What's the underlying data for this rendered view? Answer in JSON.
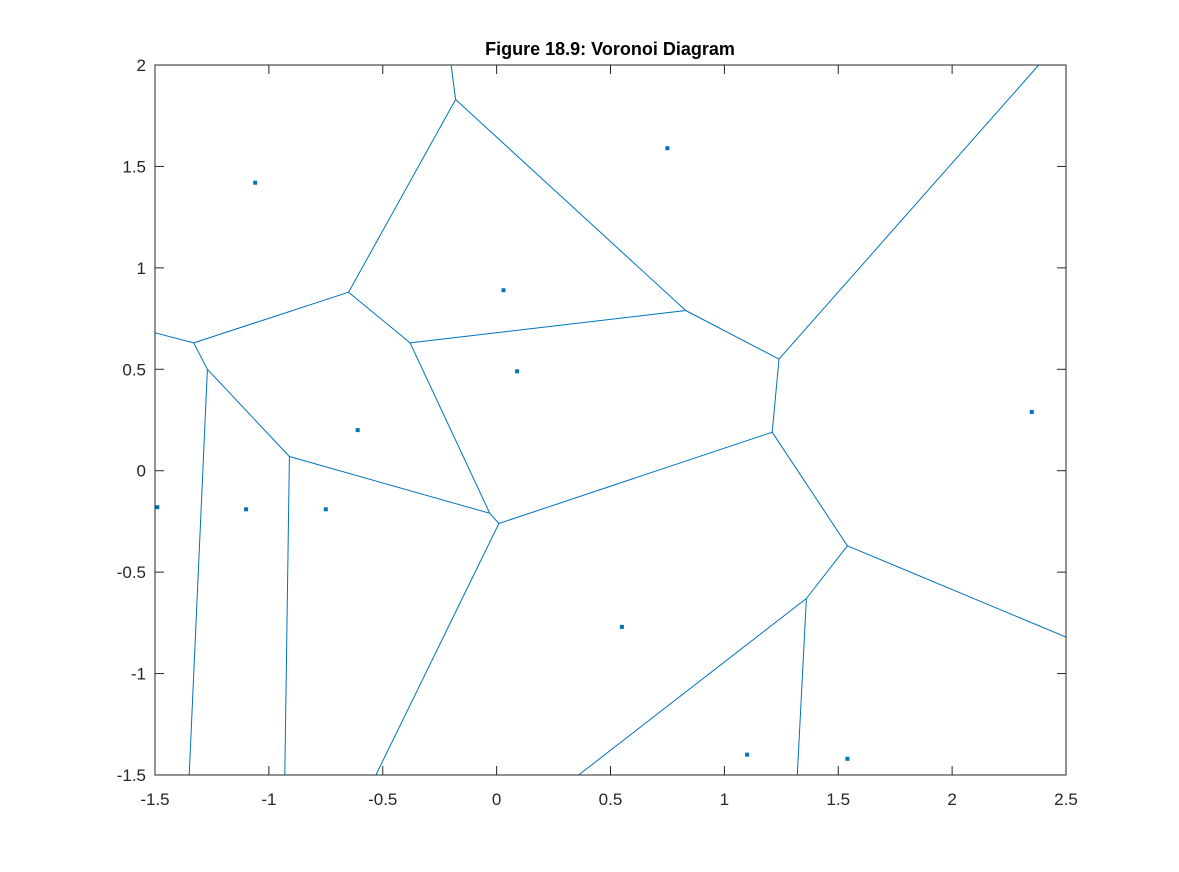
{
  "chart_data": {
    "type": "scatter",
    "title": "Figure 18.9: Voronoi Diagram",
    "xlabel": "",
    "ylabel": "",
    "xlim": [
      -1.5,
      2.5
    ],
    "ylim": [
      -1.5,
      2
    ],
    "xticks": [
      -1.5,
      -1,
      -0.5,
      0,
      0.5,
      1,
      1.5,
      2,
      2.5
    ],
    "xtick_labels": [
      "-1.5",
      "-1",
      "-0.5",
      "0",
      "0.5",
      "1",
      "1.5",
      "2",
      "2.5"
    ],
    "yticks": [
      -1.5,
      -1,
      -0.5,
      0,
      0.5,
      1,
      1.5,
      2
    ],
    "ytick_labels": [
      "-1.5",
      "-1",
      "-0.5",
      "0",
      "0.5",
      "1",
      "1.5",
      "2"
    ],
    "grid": false,
    "color": "#0072BD",
    "points": [
      {
        "x": -1.49,
        "y": -0.18
      },
      {
        "x": -1.1,
        "y": -0.19
      },
      {
        "x": -1.06,
        "y": 1.42
      },
      {
        "x": -0.75,
        "y": -0.19
      },
      {
        "x": -0.61,
        "y": 0.2
      },
      {
        "x": 0.03,
        "y": 0.89
      },
      {
        "x": 0.09,
        "y": 0.49
      },
      {
        "x": 0.55,
        "y": -0.77
      },
      {
        "x": 0.75,
        "y": 1.59
      },
      {
        "x": 1.1,
        "y": -1.4
      },
      {
        "x": 1.54,
        "y": -1.42
      },
      {
        "x": 2.35,
        "y": 0.29
      }
    ],
    "edges": [
      [
        [
          -0.2,
          2.0
        ],
        [
          -0.18,
          1.83
        ]
      ],
      [
        [
          -0.18,
          1.83
        ],
        [
          -0.65,
          0.88
        ]
      ],
      [
        [
          -0.18,
          1.83
        ],
        [
          0.83,
          0.79
        ]
      ],
      [
        [
          -0.65,
          0.88
        ],
        [
          -1.33,
          0.63
        ]
      ],
      [
        [
          -0.65,
          0.88
        ],
        [
          -0.38,
          0.63
        ]
      ],
      [
        [
          -0.38,
          0.63
        ],
        [
          0.83,
          0.79
        ]
      ],
      [
        [
          -0.38,
          0.63
        ],
        [
          -0.03,
          -0.21
        ]
      ],
      [
        [
          0.83,
          0.79
        ],
        [
          1.24,
          0.55
        ]
      ],
      [
        [
          1.24,
          0.55
        ],
        [
          2.38,
          2.0
        ]
      ],
      [
        [
          1.24,
          0.55
        ],
        [
          1.21,
          0.19
        ]
      ],
      [
        [
          1.21,
          0.19
        ],
        [
          0.01,
          -0.26
        ]
      ],
      [
        [
          1.21,
          0.19
        ],
        [
          1.54,
          -0.37
        ]
      ],
      [
        [
          1.54,
          -0.37
        ],
        [
          2.5,
          -0.82
        ]
      ],
      [
        [
          1.54,
          -0.37
        ],
        [
          1.36,
          -0.63
        ]
      ],
      [
        [
          1.36,
          -0.63
        ],
        [
          1.32,
          -1.5
        ]
      ],
      [
        [
          1.36,
          -0.63
        ],
        [
          0.36,
          -1.5
        ]
      ],
      [
        [
          0.01,
          -0.26
        ],
        [
          -0.53,
          -1.5
        ]
      ],
      [
        [
          0.01,
          -0.26
        ],
        [
          -0.03,
          -0.21
        ]
      ],
      [
        [
          -0.03,
          -0.21
        ],
        [
          -0.91,
          0.07
        ]
      ],
      [
        [
          -0.91,
          0.07
        ],
        [
          -0.93,
          -1.5
        ]
      ],
      [
        [
          -0.91,
          0.07
        ],
        [
          -1.27,
          0.5
        ]
      ],
      [
        [
          -1.27,
          0.5
        ],
        [
          -1.33,
          0.63
        ]
      ],
      [
        [
          -1.27,
          0.5
        ],
        [
          -1.35,
          -1.5
        ]
      ],
      [
        [
          -1.33,
          0.63
        ],
        [
          -1.5,
          0.68
        ]
      ]
    ]
  }
}
